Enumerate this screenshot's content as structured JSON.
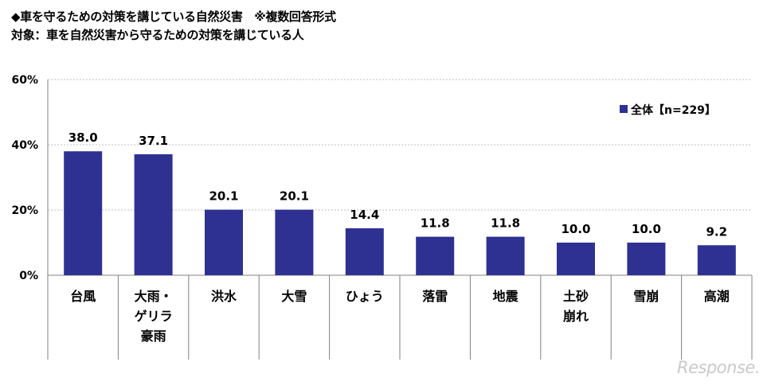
{
  "header": {
    "title": "◆車を守るための対策を講じている自然災害　※複数回答形式",
    "subtitle": "対象：車を自然災害から守るための対策を講じている人"
  },
  "watermark": "Response.",
  "colors": {
    "bar": "#2E3192",
    "grid": "#bfbfbf",
    "axis": "#808080"
  },
  "chart_data": {
    "type": "bar",
    "categories": [
      "台風",
      "大雨・\nゲリラ\n豪雨",
      "洪水",
      "大雪",
      "ひょう",
      "落雷",
      "地震",
      "土砂\n崩れ",
      "雪崩",
      "高潮"
    ],
    "series": [
      {
        "name": "全体【n=229】",
        "values": [
          38.0,
          37.1,
          20.1,
          20.1,
          14.4,
          11.8,
          11.8,
          10.0,
          10.0,
          9.2
        ]
      }
    ],
    "data_labels": [
      "38.0",
      "37.1",
      "20.1",
      "20.1",
      "14.4",
      "11.8",
      "11.8",
      "10.0",
      "10.0",
      "9.2"
    ],
    "yticks": [
      "0%",
      "20%",
      "40%",
      "60%"
    ],
    "ylim": [
      0,
      60
    ],
    "grid": true,
    "legend_position": "top-right"
  }
}
